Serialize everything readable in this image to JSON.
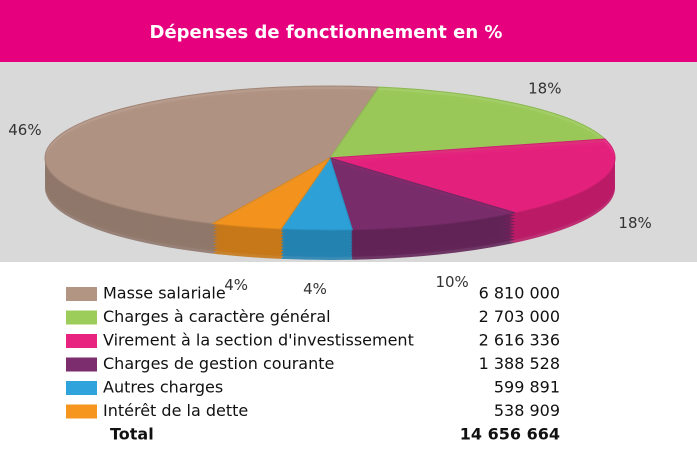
{
  "chart_data": {
    "type": "pie",
    "title": "Dépenses de fonctionnement en %",
    "categories": [
      "Masse salariale",
      "Charges à caractère général",
      "Virement à la section d'investissement",
      "Charges de gestion courante",
      "Autres charges",
      "Intérêt de la dette"
    ],
    "values": [
      46,
      18,
      18,
      10,
      4,
      4
    ],
    "value_labels": [
      "46%",
      "18%",
      "18%",
      "10%",
      "4%",
      "4%"
    ],
    "colors": [
      "#b39584",
      "#9ccc5a",
      "#e8227f",
      "#7b2d6d",
      "#2ea3dc",
      "#f7961e"
    ],
    "amounts": [
      "6 810 000",
      "2 703 000",
      "2 616 336",
      "1 388 528",
      "599 891",
      "538 909"
    ],
    "total_label": "Total",
    "total": "14 656 664"
  }
}
